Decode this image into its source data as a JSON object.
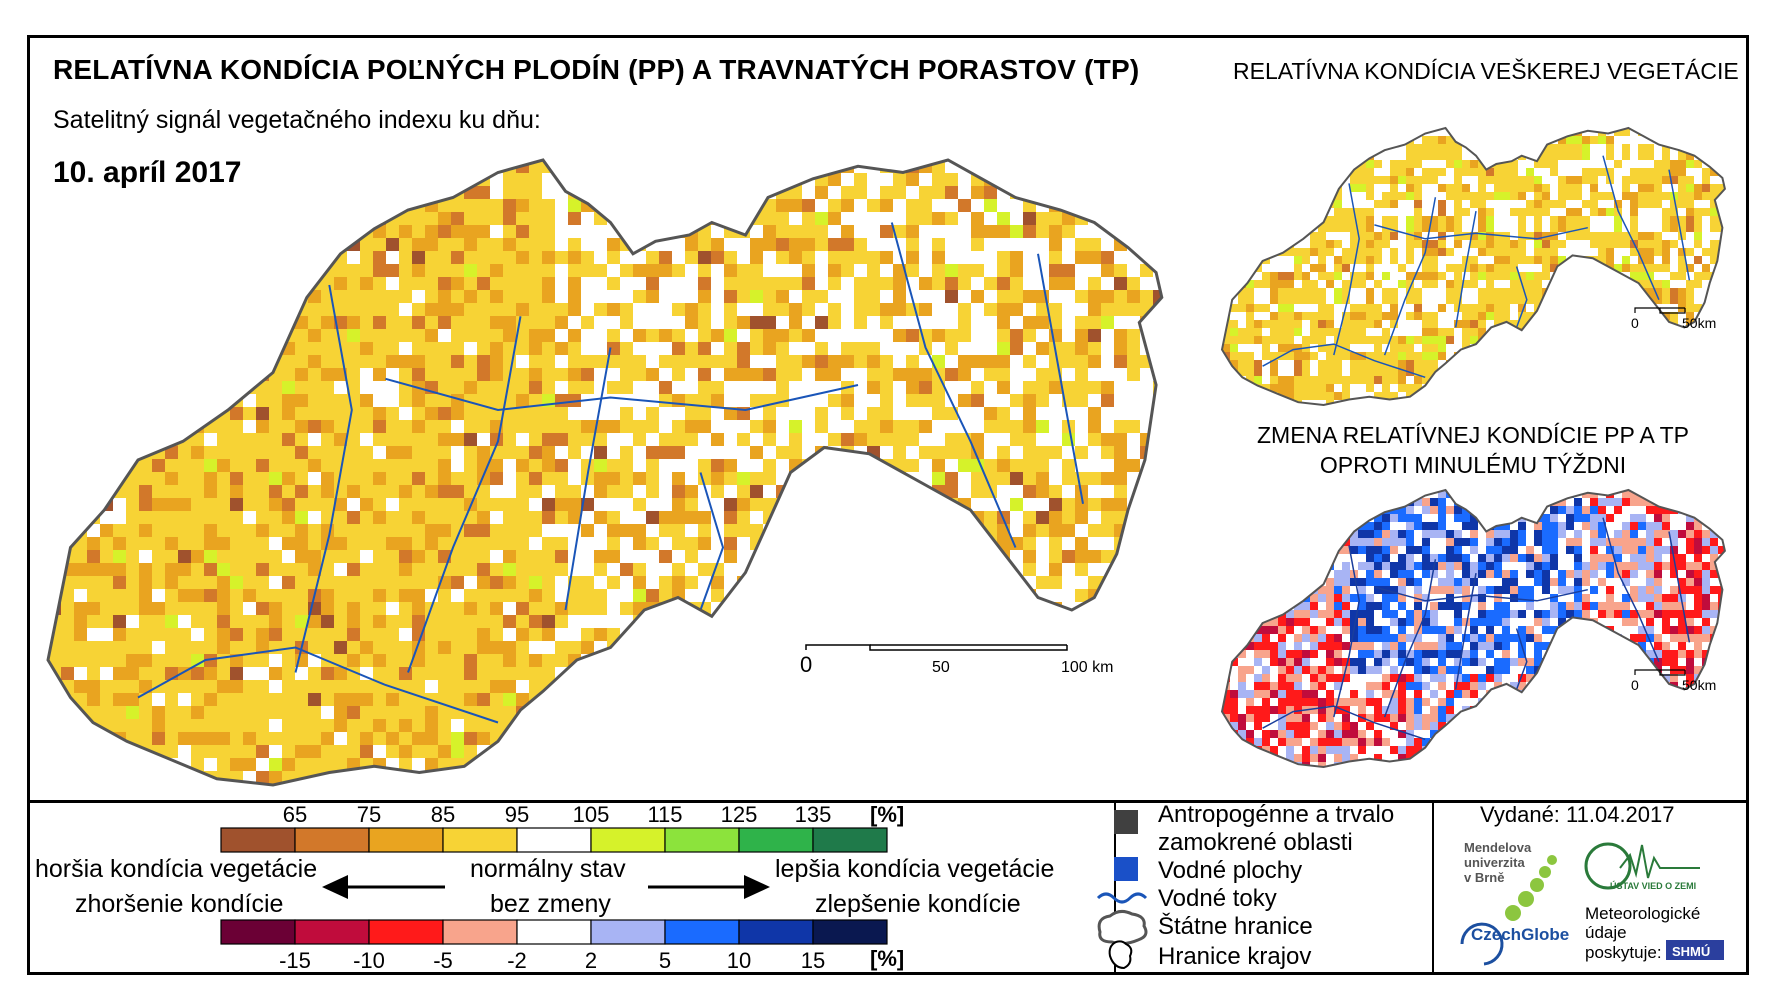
{
  "header": {
    "title": "RELATÍVNA KONDÍCIA POĽNÝCH PLODÍN (PP) A TRAVNATÝCH PORASTOV (TP)",
    "subtitle": "Satelitný signál vegetačného indexu ku dňu:",
    "date": "10. apríl 2017"
  },
  "side_maps": {
    "vegetation_title": "RELATÍVNA KONDÍCIA VEŠKEREJ VEGETÁCIE",
    "change_title_line1": "ZMENA RELATÍVNEJ KONDÍCIE PP A TP",
    "change_title_line2": "OPROTI MINULÉMU TÝŽDNI"
  },
  "main_scale": {
    "ticks": [
      "0",
      "50",
      "100 km"
    ]
  },
  "small_scale": {
    "ticks": [
      "0",
      "50km"
    ]
  },
  "legend": {
    "condition_ticks": [
      "65",
      "75",
      "85",
      "95",
      "105",
      "115",
      "125",
      "135"
    ],
    "condition_unit": "[%]",
    "condition_colors": [
      "#a0522d",
      "#d2782a",
      "#e9a420",
      "#f7d335",
      "#ffffff",
      "#d6f22a",
      "#8ce33c",
      "#2fb34a",
      "#1f7a4a"
    ],
    "change_ticks": [
      "-15",
      "-10",
      "-5",
      "-2",
      "2",
      "5",
      "10",
      "15"
    ],
    "change_unit": "[%]",
    "change_colors": [
      "#6b0035",
      "#c00c3c",
      "#ff1a1a",
      "#f8a48c",
      "#ffffff",
      "#a8b4f4",
      "#1a6bff",
      "#0f36a8",
      "#0a1850"
    ],
    "worse_line1": "horšia kondícia vegetácie",
    "worse_line2": "zhoršenie kondície",
    "normal_line1": "normálny stav",
    "normal_line2": "bez zmeny",
    "better_line1": "lepšia kondícia vegetácie",
    "better_line2": "zlepšenie kondície"
  },
  "map_legend": {
    "anthropogenic": "Antropogénne a trvalo zamokrené oblasti",
    "anthropogenic_line1": "Antropogénne a trvalo",
    "anthropogenic_line2": "zamokrené oblasti",
    "water_bodies": "Vodné plochy",
    "streams": "Vodné toky",
    "borders": "Štátne hranice",
    "regions": "Hranice krajov"
  },
  "credits": {
    "issued": "Vydané: 11.04.2017",
    "mendel_line1": "Mendelova",
    "mendel_line2": "univerzita",
    "mendel_line3": "v Brně",
    "czechglobe": "CzechGlobe",
    "uvoz": "ÚSTAV VIED O ZEMI",
    "meteo_line1": "Meteorologické",
    "meteo_line2": "údaje",
    "meteo_line3": "poskytuje:",
    "shmu": "SHMÚ"
  }
}
